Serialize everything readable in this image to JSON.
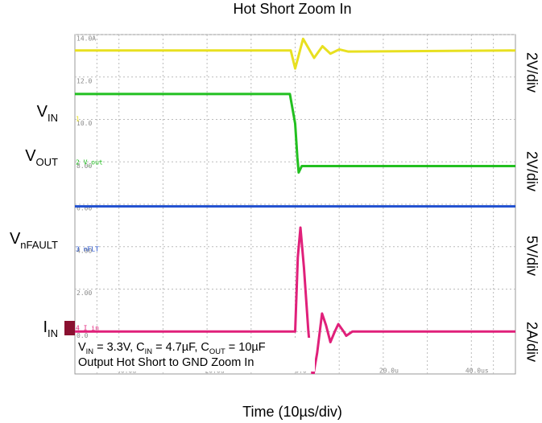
{
  "chart_data": {
    "type": "line",
    "title": "Hot Short Zoom In",
    "x_label": "Time (10µs/div)",
    "xlim": [
      -50,
      50
    ],
    "ylim": [
      -2,
      14
    ],
    "xticks": [
      {
        "value": -40,
        "label": "-40.0u"
      },
      {
        "value": -20,
        "label": "-20.0u"
      },
      {
        "value": 0,
        "label": "0.0"
      },
      {
        "value": 20,
        "label": "20.0u"
      },
      {
        "value": 40,
        "label": "40.0us"
      }
    ],
    "yticks": [
      {
        "value": 14,
        "label": "14.0A"
      },
      {
        "value": 12,
        "label": "12.0"
      },
      {
        "value": 10,
        "label": "10.0"
      },
      {
        "value": 8,
        "label": "8.00"
      },
      {
        "value": 6,
        "label": "6.00"
      },
      {
        "value": 4,
        "label": "4.00"
      },
      {
        "value": 2,
        "label": "2.00"
      },
      {
        "value": 0,
        "label": "0.0"
      }
    ],
    "grid": true,
    "series": [
      {
        "color": "#e8e020",
        "x": [
          -50,
          -1,
          0,
          1.8,
          4.3,
          6.2,
          8,
          10,
          12,
          50
        ],
        "values": [
          13.25,
          13.25,
          12.4,
          13.8,
          12.9,
          13.45,
          13.1,
          13.3,
          13.2,
          13.25
        ]
      },
      {
        "color": "#22c020",
        "x": [
          -50,
          -1.2,
          0,
          0.5,
          0.8,
          1.5,
          50
        ],
        "values": [
          11.2,
          11.2,
          9.8,
          8.2,
          7.5,
          7.8,
          7.8
        ]
      },
      {
        "color": "#2050d0",
        "x": [
          -50,
          50
        ],
        "values": [
          5.9,
          5.9
        ]
      },
      {
        "color": "#e0207a",
        "x": [
          -50,
          0,
          0.6,
          1.2,
          2,
          3,
          4,
          5,
          6.1,
          7,
          8,
          9,
          9.8,
          11,
          11.6,
          13,
          50
        ],
        "values": [
          0,
          0,
          3.5,
          4.9,
          3,
          0,
          -2.2,
          -1,
          0.85,
          0.3,
          -0.5,
          0,
          0.35,
          0,
          -0.2,
          0,
          0
        ]
      }
    ],
    "channel_labels": [
      [
        {
          "text": "V"
        },
        {
          "text": "IN",
          "sub": true
        }
      ],
      [
        {
          "text": "V"
        },
        {
          "text": "OUT",
          "sub": true
        }
      ],
      [
        {
          "text": "V"
        },
        {
          "text": "nFAULT",
          "sub": true
        }
      ],
      [
        {
          "text": "I"
        },
        {
          "text": "IN",
          "sub": true
        }
      ]
    ],
    "channel_markers": [
      "1",
      "2 V_out",
      "3 nFLT",
      "4 I_in"
    ],
    "scale_labels": [
      "2V/div",
      "2V/div",
      "5V/div",
      "2A/div"
    ],
    "annotations": [
      [
        {
          "text": "V"
        },
        {
          "text": "IN",
          "sub": true
        },
        {
          "text": " = 3.3V, C"
        },
        {
          "text": "IN",
          "sub": true
        },
        {
          "text": " = 4.7µF, C"
        },
        {
          "text": "OUT",
          "sub": true
        },
        {
          "text": " = 10µF"
        }
      ],
      [
        {
          "text": "Output Hot Short to GND Zoom In"
        }
      ]
    ]
  }
}
